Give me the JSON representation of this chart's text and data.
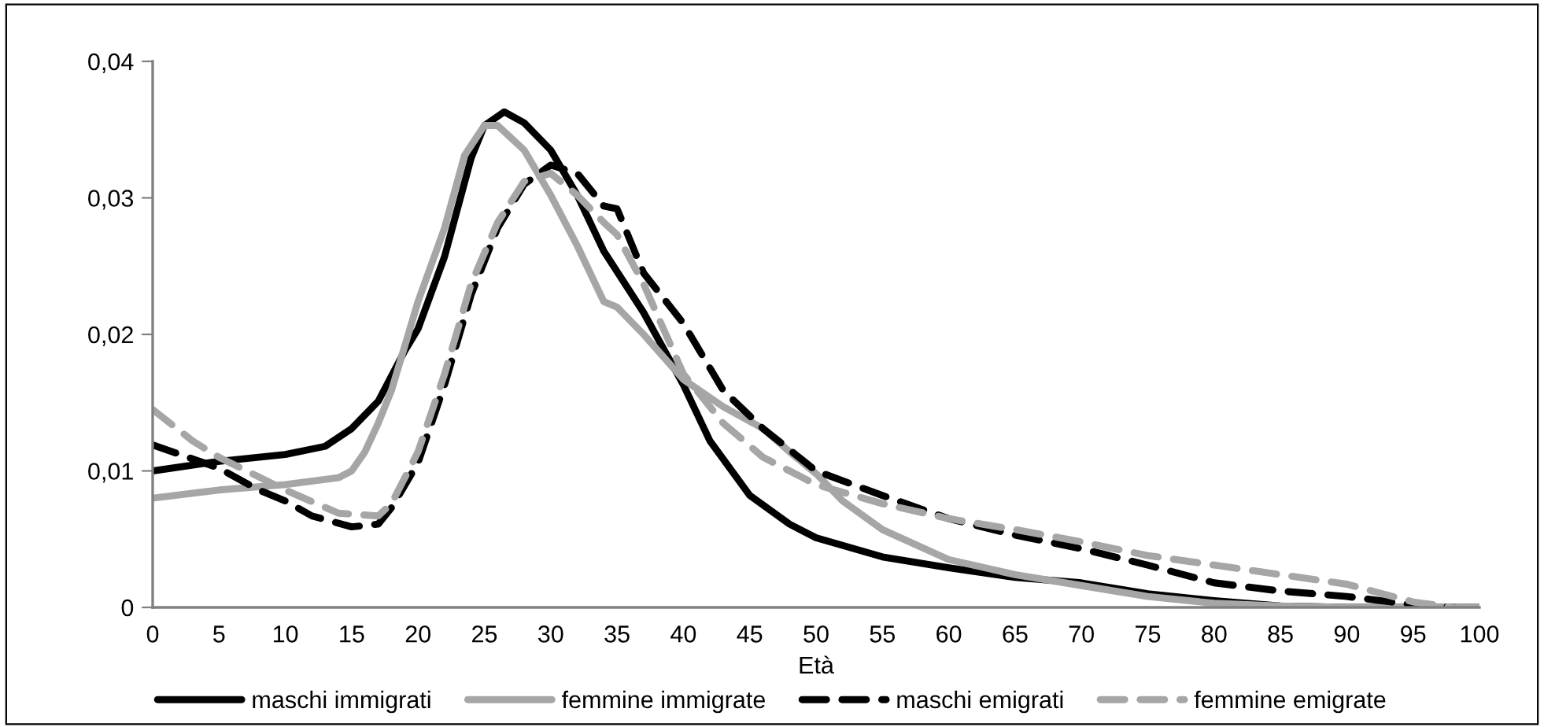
{
  "chart_data": {
    "type": "line",
    "xlabel": "Età",
    "xlim": [
      0,
      100
    ],
    "ylim": [
      0,
      0.04
    ],
    "xticks": [
      0,
      5,
      10,
      15,
      20,
      25,
      30,
      35,
      40,
      45,
      50,
      55,
      60,
      65,
      70,
      75,
      80,
      85,
      90,
      95,
      100
    ],
    "yticks": [
      {
        "value": 0,
        "label": "0"
      },
      {
        "value": 0.01,
        "label": "0,01"
      },
      {
        "value": 0.02,
        "label": "0,02"
      },
      {
        "value": 0.03,
        "label": "0,03"
      },
      {
        "value": 0.04,
        "label": "0,04"
      }
    ],
    "grid": false,
    "legend": "bottom",
    "marker": "none",
    "series": [
      {
        "name": "maschi immigrati",
        "color": "#000000",
        "line_style": "solid",
        "x": [
          0,
          5,
          10,
          13,
          15,
          17,
          19,
          20,
          22,
          24,
          25,
          26.5,
          28,
          30,
          32,
          34,
          37,
          40,
          42,
          45,
          48,
          50,
          55,
          60,
          65,
          70,
          75,
          80,
          85,
          90,
          100
        ],
        "values": [
          0.01,
          0.0107,
          0.0112,
          0.0118,
          0.0131,
          0.0151,
          0.0188,
          0.0204,
          0.0257,
          0.0329,
          0.0353,
          0.0363,
          0.0355,
          0.0335,
          0.0302,
          0.0261,
          0.0216,
          0.0163,
          0.0122,
          0.0082,
          0.0061,
          0.0051,
          0.0037,
          0.0029,
          0.0022,
          0.0018,
          0.001,
          0.0005,
          0.0001,
          0,
          0
        ]
      },
      {
        "name": "femmine immigrate",
        "color": "#a6a6a6",
        "line_style": "solid",
        "x": [
          0,
          5,
          10,
          14,
          15,
          16,
          17,
          18,
          20,
          22,
          23.5,
          25,
          26,
          28,
          30,
          32,
          34,
          35,
          37,
          40,
          43,
          46,
          48,
          50,
          52,
          55,
          60,
          65,
          70,
          75,
          80,
          85,
          90,
          100
        ],
        "values": [
          0.008,
          0.0086,
          0.009,
          0.0095,
          0.01,
          0.0114,
          0.0135,
          0.0159,
          0.0224,
          0.0278,
          0.0331,
          0.0353,
          0.0353,
          0.0335,
          0.0302,
          0.0265,
          0.0224,
          0.022,
          0.02,
          0.0167,
          0.0147,
          0.0131,
          0.0114,
          0.0098,
          0.0078,
          0.0057,
          0.0035,
          0.0024,
          0.0016,
          0.0008,
          0.0003,
          0.0001,
          0,
          0
        ]
      },
      {
        "name": "maschi emigrati",
        "color": "#000000",
        "line_style": "dashed",
        "x": [
          0,
          5,
          8,
          10,
          12,
          15,
          17,
          18,
          20,
          22,
          24,
          26,
          28,
          30,
          32,
          34,
          35,
          37,
          40,
          43,
          46,
          50,
          55,
          60,
          65,
          70,
          75,
          80,
          85,
          90,
          95,
          98
        ],
        "values": [
          0.0119,
          0.0102,
          0.0086,
          0.0078,
          0.0067,
          0.0059,
          0.0061,
          0.0073,
          0.0106,
          0.0163,
          0.0229,
          0.0278,
          0.031,
          0.0324,
          0.0318,
          0.0294,
          0.0292,
          0.0245,
          0.0208,
          0.0159,
          0.0131,
          0.01,
          0.0082,
          0.0065,
          0.0053,
          0.0043,
          0.0031,
          0.0018,
          0.0012,
          0.0008,
          0.0002,
          0
        ]
      },
      {
        "name": "femmine emigrate",
        "color": "#a6a6a6",
        "line_style": "dashed",
        "x": [
          0,
          3,
          5,
          10,
          14,
          17,
          18,
          20,
          22,
          24,
          26,
          28,
          30,
          32,
          34,
          35,
          37,
          40,
          43,
          46,
          50,
          55,
          60,
          65,
          70,
          75,
          80,
          85,
          90,
          95,
          98
        ],
        "values": [
          0.0145,
          0.0122,
          0.011,
          0.0086,
          0.0069,
          0.0067,
          0.0076,
          0.0114,
          0.0171,
          0.0237,
          0.0282,
          0.0312,
          0.0318,
          0.0302,
          0.0282,
          0.0273,
          0.0237,
          0.0171,
          0.0135,
          0.011,
          0.009,
          0.0076,
          0.0065,
          0.0057,
          0.0048,
          0.0038,
          0.0031,
          0.0024,
          0.0017,
          0.0004,
          0
        ]
      }
    ]
  }
}
